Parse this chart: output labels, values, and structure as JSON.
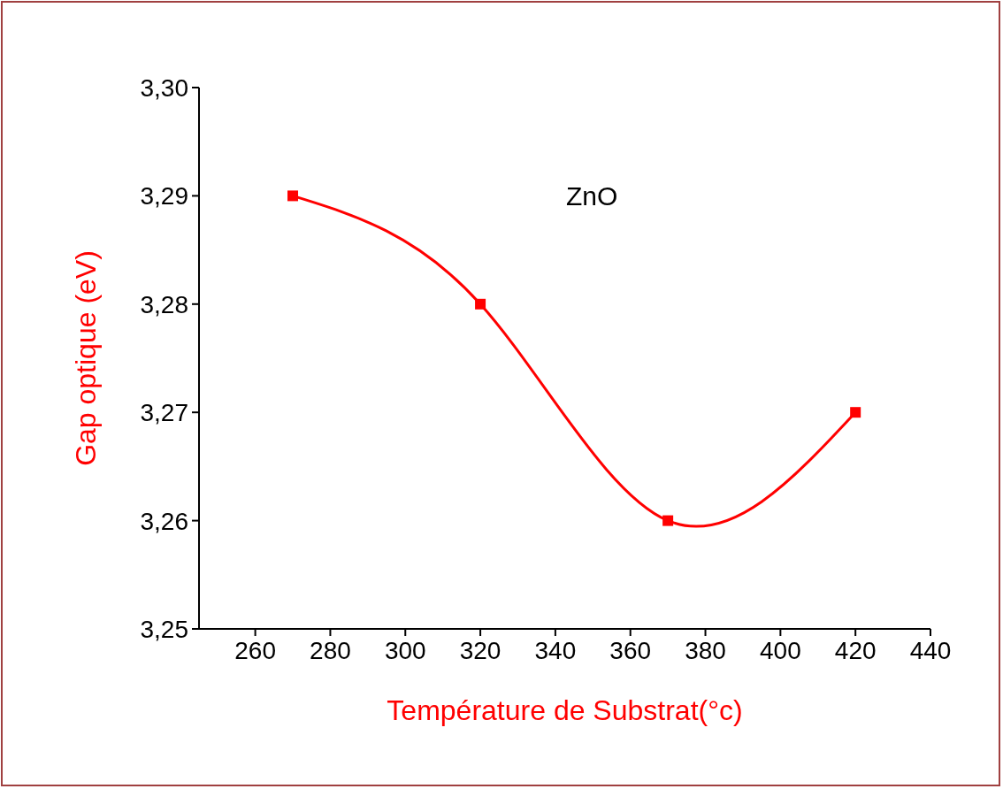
{
  "chart_data": {
    "type": "line",
    "xlabel": "Température de Substrat(°c)",
    "ylabel": "Gap optique (eV)",
    "annotations": [
      "ZnO"
    ],
    "x": [
      270,
      320,
      370,
      420
    ],
    "series": [
      {
        "color": "#ff0000",
        "values": [
          3.29,
          3.28,
          3.26,
          3.27
        ]
      }
    ],
    "xlim": [
      245,
      440
    ],
    "xticks": [
      260,
      280,
      300,
      320,
      340,
      360,
      380,
      400,
      420,
      440
    ],
    "ylim": [
      3.25,
      3.3
    ],
    "yticks": [
      {
        "value": 3.25,
        "label": "3,25"
      },
      {
        "value": 3.26,
        "label": "3,26"
      },
      {
        "value": 3.27,
        "label": "3,27"
      },
      {
        "value": 3.28,
        "label": "3,28"
      },
      {
        "value": 3.29,
        "label": "3,29"
      },
      {
        "value": 3.3,
        "label": "3,30"
      }
    ],
    "marker": "square",
    "line_style": "solid",
    "grid": false,
    "legend": false
  }
}
